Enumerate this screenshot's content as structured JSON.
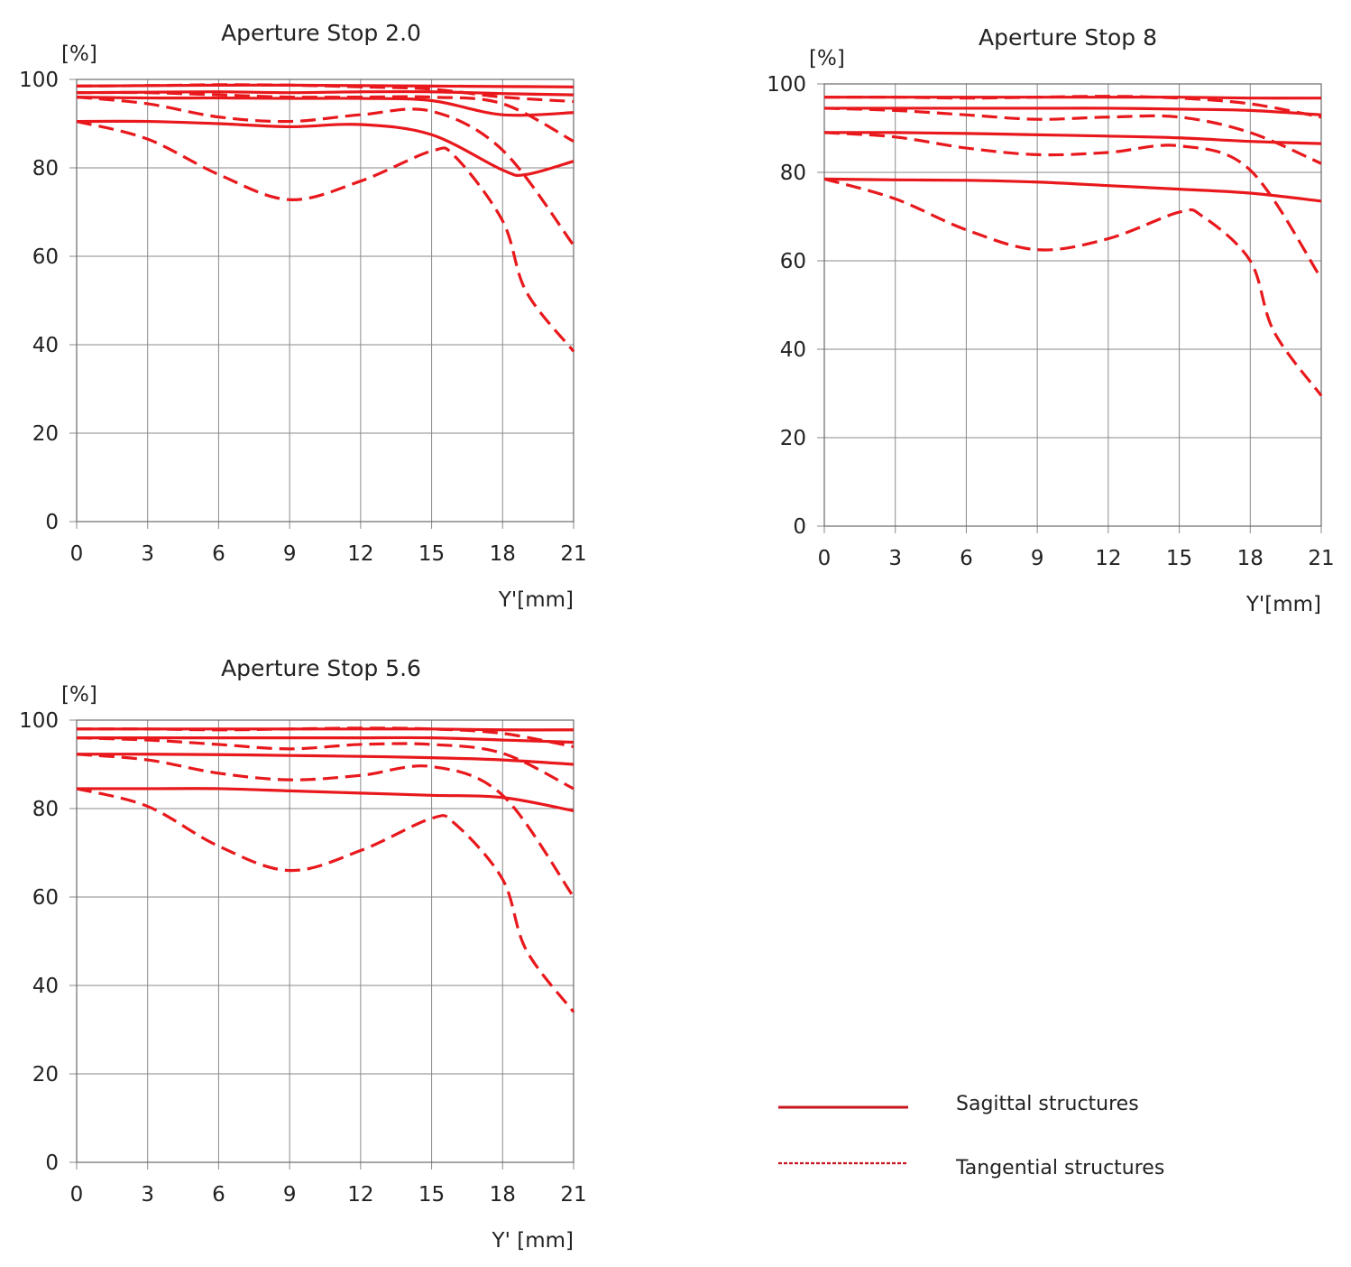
{
  "colors": {
    "curve": "#e8181c",
    "grid": "#8a8a8a",
    "text": "#222222",
    "legend_line": "#c8141e"
  },
  "chart_data": [
    {
      "type": "line",
      "title": "Aperture Stop 2.0",
      "ylabel": "[%]",
      "xlabel": "Y'[mm]",
      "xticks": [
        "0",
        "3",
        "6",
        "9",
        "12",
        "15",
        "18",
        "21"
      ],
      "yticks": [
        "0",
        "20",
        "40",
        "60",
        "80",
        "100"
      ],
      "xlim": [
        0,
        21
      ],
      "ylim": [
        0,
        100
      ],
      "grid": true,
      "series": [
        {
          "style": "solid",
          "x": [
            0,
            3,
            6,
            9,
            12,
            15,
            18,
            21
          ],
          "y": [
            98.5,
            98.6,
            98.7,
            98.7,
            98.6,
            98.5,
            98.4,
            98.3
          ]
        },
        {
          "style": "dashed",
          "x": [
            0,
            3,
            6,
            9,
            12,
            15,
            18,
            21
          ],
          "y": [
            98.5,
            98.6,
            98.8,
            98.7,
            98.3,
            97.8,
            96.0,
            95.0
          ]
        },
        {
          "style": "solid",
          "x": [
            0,
            3,
            6,
            9,
            12,
            15,
            18,
            21
          ],
          "y": [
            97.0,
            97.1,
            97.2,
            97.0,
            97.2,
            97.2,
            96.8,
            96.5
          ]
        },
        {
          "style": "dashed",
          "x": [
            0,
            3,
            6,
            9,
            12,
            15,
            18,
            21
          ],
          "y": [
            97.0,
            97.0,
            96.5,
            96.0,
            96.0,
            96.0,
            94.5,
            86.0
          ]
        },
        {
          "style": "solid",
          "x": [
            0,
            3,
            6,
            9,
            12,
            15,
            18,
            21
          ],
          "y": [
            96.0,
            95.8,
            95.8,
            95.7,
            95.7,
            95.2,
            92.0,
            92.5
          ]
        },
        {
          "style": "dashed",
          "x": [
            0,
            3,
            6,
            9,
            12,
            15,
            18,
            21
          ],
          "y": [
            96.0,
            94.5,
            91.5,
            90.5,
            92.0,
            92.8,
            84.0,
            62.5
          ]
        },
        {
          "style": "solid",
          "x": [
            0,
            3,
            6,
            9,
            12,
            15,
            18,
            19,
            21
          ],
          "y": [
            90.5,
            90.5,
            90.0,
            89.3,
            89.8,
            87.5,
            79.5,
            78.5,
            81.5
          ]
        },
        {
          "style": "dashed",
          "x": [
            0,
            3,
            6,
            9,
            12,
            15,
            16,
            18,
            19,
            21
          ],
          "y": [
            90.5,
            86.5,
            78.5,
            72.8,
            77.0,
            83.8,
            82.5,
            68.0,
            52.0,
            38.5
          ]
        }
      ]
    },
    {
      "type": "line",
      "title": "Aperture Stop 8",
      "ylabel": "[%]",
      "xlabel": "Y'[mm]",
      "xticks": [
        "0",
        "3",
        "6",
        "9",
        "12",
        "15",
        "18",
        "21"
      ],
      "yticks": [
        "0",
        "20",
        "40",
        "60",
        "80",
        "100"
      ],
      "xlim": [
        0,
        21
      ],
      "ylim": [
        0,
        100
      ],
      "grid": true,
      "series": [
        {
          "style": "solid",
          "x": [
            0,
            3,
            6,
            9,
            12,
            15,
            18,
            21
          ],
          "y": [
            97.0,
            97.0,
            97.0,
            97.0,
            97.0,
            97.0,
            96.8,
            96.8
          ]
        },
        {
          "style": "dashed",
          "x": [
            0,
            3,
            6,
            9,
            12,
            15,
            18,
            21
          ],
          "y": [
            97.0,
            97.0,
            96.8,
            97.0,
            97.2,
            96.8,
            95.5,
            92.5
          ]
        },
        {
          "style": "solid",
          "x": [
            0,
            3,
            6,
            9,
            12,
            15,
            18,
            21
          ],
          "y": [
            94.5,
            94.5,
            94.5,
            94.5,
            94.5,
            94.3,
            94.0,
            93.0
          ]
        },
        {
          "style": "dashed",
          "x": [
            0,
            3,
            6,
            9,
            12,
            15,
            18,
            21
          ],
          "y": [
            94.5,
            94.0,
            93.0,
            92.0,
            92.5,
            92.5,
            89.0,
            82.0
          ]
        },
        {
          "style": "solid",
          "x": [
            0,
            3,
            6,
            9,
            12,
            15,
            18,
            21
          ],
          "y": [
            89.0,
            89.0,
            88.8,
            88.5,
            88.2,
            87.8,
            87.0,
            86.5
          ]
        },
        {
          "style": "dashed",
          "x": [
            0,
            3,
            6,
            9,
            12,
            15,
            18,
            21
          ],
          "y": [
            89.0,
            88.0,
            85.5,
            84.0,
            84.5,
            86.0,
            80.5,
            56.0
          ]
        },
        {
          "style": "solid",
          "x": [
            0,
            3,
            6,
            9,
            12,
            15,
            18,
            21
          ],
          "y": [
            78.5,
            78.3,
            78.2,
            77.8,
            77.0,
            76.2,
            75.3,
            73.5
          ]
        },
        {
          "style": "dashed",
          "x": [
            0,
            3,
            6,
            9,
            12,
            15,
            16,
            18,
            19,
            21
          ],
          "y": [
            78.5,
            74.0,
            67.0,
            62.5,
            65.0,
            71.0,
            70.0,
            60.0,
            44.0,
            29.5
          ]
        }
      ]
    },
    {
      "type": "line",
      "title": "Aperture Stop 5.6",
      "ylabel": "[%]",
      "xlabel": "Y' [mm]",
      "xticks": [
        "0",
        "3",
        "6",
        "9",
        "12",
        "15",
        "18",
        "21"
      ],
      "yticks": [
        "0",
        "20",
        "40",
        "60",
        "80",
        "100"
      ],
      "xlim": [
        0,
        21
      ],
      "ylim": [
        0,
        100
      ],
      "grid": true,
      "series": [
        {
          "style": "solid",
          "x": [
            0,
            3,
            6,
            9,
            12,
            15,
            18,
            21
          ],
          "y": [
            98.0,
            98.0,
            98.0,
            98.0,
            98.0,
            98.0,
            97.8,
            97.8
          ]
        },
        {
          "style": "dashed",
          "x": [
            0,
            3,
            6,
            9,
            12,
            15,
            18,
            21
          ],
          "y": [
            98.0,
            98.0,
            97.8,
            98.0,
            98.2,
            98.0,
            97.0,
            94.0
          ]
        },
        {
          "style": "solid",
          "x": [
            0,
            3,
            6,
            9,
            12,
            15,
            18,
            21
          ],
          "y": [
            96.0,
            96.0,
            96.0,
            96.0,
            96.0,
            96.0,
            95.5,
            95.0
          ]
        },
        {
          "style": "dashed",
          "x": [
            0,
            3,
            6,
            9,
            12,
            15,
            18,
            21
          ],
          "y": [
            96.0,
            95.5,
            94.5,
            93.5,
            94.5,
            94.5,
            92.5,
            84.5
          ]
        },
        {
          "style": "solid",
          "x": [
            0,
            3,
            6,
            9,
            12,
            15,
            18,
            21
          ],
          "y": [
            92.3,
            92.3,
            92.2,
            92.0,
            91.8,
            91.5,
            91.0,
            90.0
          ]
        },
        {
          "style": "dashed",
          "x": [
            0,
            3,
            6,
            9,
            12,
            15,
            18,
            21
          ],
          "y": [
            92.3,
            91.0,
            88.0,
            86.5,
            87.5,
            89.5,
            83.0,
            60.0
          ]
        },
        {
          "style": "solid",
          "x": [
            0,
            3,
            6,
            9,
            12,
            15,
            18,
            21
          ],
          "y": [
            84.5,
            84.5,
            84.5,
            84.0,
            83.5,
            83.0,
            82.5,
            79.5
          ]
        },
        {
          "style": "dashed",
          "x": [
            0,
            3,
            6,
            9,
            12,
            15,
            16,
            18,
            19,
            21
          ],
          "y": [
            84.5,
            80.5,
            71.5,
            66.0,
            70.5,
            77.8,
            76.5,
            64.0,
            48.0,
            34.0
          ]
        }
      ]
    }
  ],
  "legend": {
    "placement": "bottom-right",
    "items": [
      {
        "label": "Sagittal structures",
        "style": "solid"
      },
      {
        "label": "Tangential structures",
        "style": "dashed"
      }
    ]
  }
}
